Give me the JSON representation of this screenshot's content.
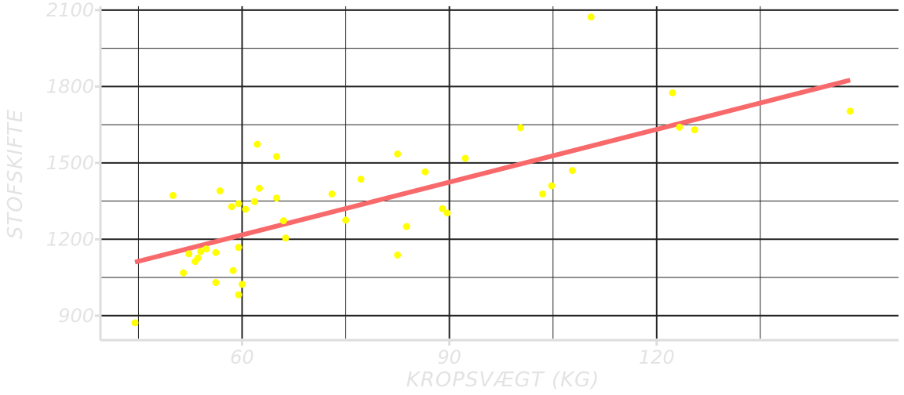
{
  "chart_data": {
    "type": "scatter",
    "xlabel": "KROPSVÆGT (KG)",
    "ylabel": "STOFSKIFTE",
    "xlim": [
      39.5,
      155
    ],
    "ylim": [
      810,
      2115
    ],
    "x_ticks": [
      60,
      90,
      120
    ],
    "x_minor_ticks": [
      45,
      75,
      105,
      135
    ],
    "y_ticks": [
      900,
      1200,
      1500,
      1800,
      2100
    ],
    "y_minor_ticks": [
      1050,
      1350,
      1650,
      1950
    ],
    "grid": true,
    "colors": {
      "points": "#ffff00",
      "trend": "#f8696b",
      "grid": "#222222",
      "axis": "#dddddd",
      "text": "#e3e3e3"
    },
    "points": [
      {
        "x": 44.5,
        "y": 872
      },
      {
        "x": 50,
        "y": 1372
      },
      {
        "x": 51.5,
        "y": 1068
      },
      {
        "x": 52.3,
        "y": 1143
      },
      {
        "x": 53.2,
        "y": 1113
      },
      {
        "x": 53.6,
        "y": 1126
      },
      {
        "x": 54,
        "y": 1152
      },
      {
        "x": 54.8,
        "y": 1162
      },
      {
        "x": 56.2,
        "y": 1030
      },
      {
        "x": 56.2,
        "y": 1148
      },
      {
        "x": 56.8,
        "y": 1390
      },
      {
        "x": 58.5,
        "y": 1328
      },
      {
        "x": 58.7,
        "y": 1077
      },
      {
        "x": 59.5,
        "y": 1340
      },
      {
        "x": 59.5,
        "y": 1168
      },
      {
        "x": 59.5,
        "y": 982
      },
      {
        "x": 60,
        "y": 1023
      },
      {
        "x": 60.5,
        "y": 1318
      },
      {
        "x": 61.8,
        "y": 1348
      },
      {
        "x": 62.2,
        "y": 1573
      },
      {
        "x": 62.5,
        "y": 1400
      },
      {
        "x": 65,
        "y": 1362
      },
      {
        "x": 65,
        "y": 1525
      },
      {
        "x": 66,
        "y": 1273
      },
      {
        "x": 66.3,
        "y": 1205
      },
      {
        "x": 73,
        "y": 1378
      },
      {
        "x": 75,
        "y": 1275
      },
      {
        "x": 77.2,
        "y": 1436
      },
      {
        "x": 82.5,
        "y": 1535
      },
      {
        "x": 82.5,
        "y": 1138
      },
      {
        "x": 83.8,
        "y": 1250
      },
      {
        "x": 86.5,
        "y": 1465
      },
      {
        "x": 89,
        "y": 1320
      },
      {
        "x": 89.7,
        "y": 1303
      },
      {
        "x": 92.3,
        "y": 1518
      },
      {
        "x": 100.3,
        "y": 1638
      },
      {
        "x": 103.5,
        "y": 1378
      },
      {
        "x": 104.8,
        "y": 1410
      },
      {
        "x": 107.8,
        "y": 1470
      },
      {
        "x": 110.5,
        "y": 2073
      },
      {
        "x": 122.3,
        "y": 1775
      },
      {
        "x": 123.3,
        "y": 1640
      },
      {
        "x": 125.5,
        "y": 1630
      },
      {
        "x": 148,
        "y": 1703
      }
    ],
    "trend_line": {
      "x": [
        44.5,
        148
      ],
      "y": [
        1110,
        1825
      ]
    }
  }
}
